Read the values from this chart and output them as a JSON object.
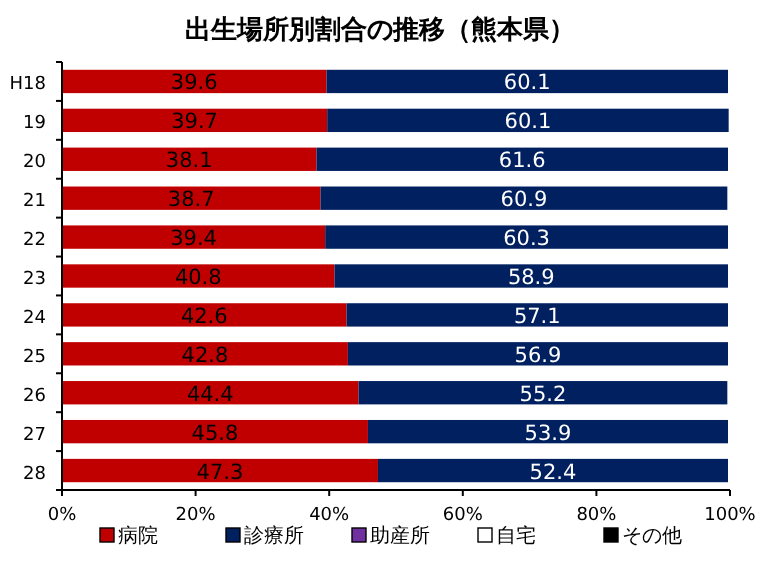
{
  "chart_data": {
    "type": "bar",
    "orientation": "horizontal",
    "stacked": true,
    "title": "出生場所別割合の推移（熊本県）",
    "categories": [
      "H18",
      "19",
      "20",
      "21",
      "22",
      "23",
      "24",
      "25",
      "26",
      "27",
      "28"
    ],
    "series": [
      {
        "name": "病院",
        "color": "#c00000",
        "values": [
          39.6,
          39.7,
          38.1,
          38.7,
          39.4,
          40.8,
          42.6,
          42.8,
          44.4,
          45.8,
          47.3
        ]
      },
      {
        "name": "診療所",
        "color": "#002060",
        "values": [
          60.1,
          60.1,
          61.6,
          60.9,
          60.3,
          58.9,
          57.1,
          56.9,
          55.2,
          53.9,
          52.4
        ]
      },
      {
        "name": "助産所",
        "color": "#7030a0",
        "values": [
          null,
          null,
          null,
          null,
          null,
          null,
          null,
          null,
          null,
          null,
          null
        ]
      },
      {
        "name": "自宅",
        "color": "#ffffff",
        "values": [
          null,
          null,
          null,
          null,
          null,
          null,
          null,
          null,
          null,
          null,
          null
        ]
      },
      {
        "name": "その他",
        "color": "#000000",
        "values": [
          null,
          null,
          null,
          null,
          null,
          null,
          null,
          null,
          null,
          null,
          null
        ]
      }
    ],
    "data_labels": true,
    "xlim": [
      0,
      100
    ],
    "xticks": [
      {
        "value": 0,
        "label": "0%"
      },
      {
        "value": 20,
        "label": "20%"
      },
      {
        "value": 40,
        "label": "40%"
      },
      {
        "value": 60,
        "label": "60%"
      },
      {
        "value": 80,
        "label": "80%"
      },
      {
        "value": 100,
        "label": "100%"
      }
    ],
    "grid": false,
    "legend": "bottom"
  }
}
